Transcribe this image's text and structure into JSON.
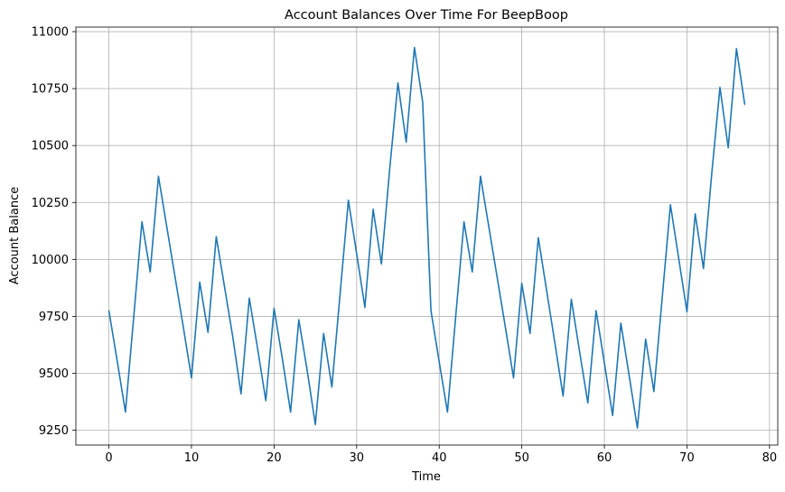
{
  "chart_data": {
    "type": "line",
    "title": "Account Balances Over Time For BeepBoop",
    "xlabel": "Time",
    "ylabel": "Account Balance",
    "xlim": [
      -4,
      81
    ],
    "ylim": [
      9185,
      11020
    ],
    "xticks": [
      0,
      10,
      20,
      30,
      40,
      50,
      60,
      70,
      80
    ],
    "yticks": [
      9250,
      9500,
      9750,
      10000,
      10250,
      10500,
      10750,
      11000
    ],
    "grid": true,
    "line_color": "#1f77b4",
    "series": [
      {
        "x": [
          0,
          1,
          2,
          3,
          4,
          5,
          6,
          7,
          8,
          9,
          10,
          11,
          12,
          13,
          14,
          15,
          16,
          17,
          18,
          19,
          20,
          21,
          22,
          23,
          24,
          25,
          26,
          27,
          28,
          29,
          30,
          31,
          32,
          33,
          34,
          35,
          36,
          37,
          38,
          39,
          40,
          41,
          42,
          43,
          44,
          45,
          46,
          47,
          48,
          49,
          50,
          51,
          52,
          53,
          54,
          55,
          56,
          57,
          58,
          59,
          60,
          61,
          62,
          63,
          64,
          65,
          66,
          67,
          68,
          69,
          70,
          71,
          72,
          73,
          74,
          75,
          76,
          77
        ],
        "values": [
          9775,
          9555,
          9330,
          9745,
          10165,
          9945,
          10365,
          10145,
          9925,
          9705,
          9480,
          9900,
          9680,
          10100,
          9880,
          9660,
          9410,
          9830,
          9610,
          9380,
          9785,
          9565,
          9330,
          9735,
          9515,
          9275,
          9675,
          9440,
          9850,
          10260,
          10025,
          9790,
          10220,
          9980,
          10395,
          10775,
          10515,
          10930,
          10690,
          9775,
          9550,
          9330,
          9750,
          10165,
          9945,
          10365,
          10145,
          9925,
          9705,
          9480,
          9895,
          9675,
          10095,
          9865,
          9635,
          9400,
          9825,
          9595,
          9370,
          9775,
          9545,
          9315,
          9720,
          9490,
          9260,
          9650,
          9420,
          9830,
          10240,
          10005,
          9770,
          10200,
          9960,
          10375,
          10755,
          10490,
          10925,
          10680
        ]
      }
    ]
  }
}
